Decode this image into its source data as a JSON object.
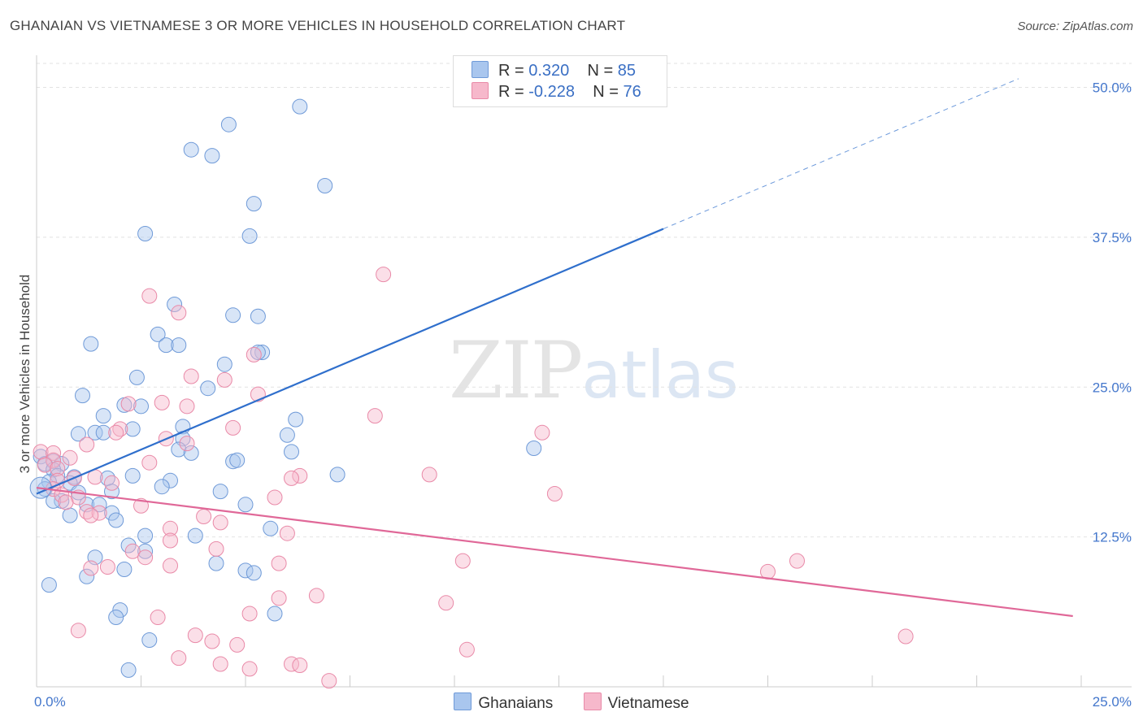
{
  "header": {
    "title": "GHANAIAN VS VIETNAMESE 3 OR MORE VEHICLES IN HOUSEHOLD CORRELATION CHART",
    "source": "Source: ZipAtlas.com"
  },
  "watermark": {
    "zip": "ZIP",
    "atlas": "atlas"
  },
  "legend": {
    "rows": [
      {
        "r_label": "R = ",
        "r_value": "0.320",
        "n_label": "N = ",
        "n_value": "85",
        "color": "#a9c6ee"
      },
      {
        "r_label": "R = ",
        "r_value": "-0.228",
        "n_label": "N = ",
        "n_value": "76",
        "color": "#f6b8cb"
      }
    ]
  },
  "bottom_legend": [
    {
      "name": "Ghanaians",
      "color": "#a9c6ee"
    },
    {
      "name": "Vietnamese",
      "color": "#f6b8cb"
    }
  ],
  "chart_data": {
    "type": "scatter",
    "title": "GHANAIAN VS VIETNAMESE 3 OR MORE VEHICLES IN HOUSEHOLD CORRELATION CHART",
    "xlabel": "",
    "ylabel": "3 or more Vehicles in Household",
    "xlim": [
      0,
      25
    ],
    "ylim": [
      0,
      50
    ],
    "x_tick_labels": [
      "0.0%",
      "25.0%"
    ],
    "y_ticks": [
      12.5,
      25,
      37.5,
      50
    ],
    "y_tick_labels": [
      "12.5%",
      "25.0%",
      "37.5%",
      "50.0%"
    ],
    "grid": true,
    "legend_position": "top-center",
    "series": [
      {
        "name": "Ghanaians",
        "color": "#a9c6ee",
        "stroke": "#6f9ad8",
        "trend": {
          "x0": 0,
          "y0": 16.1,
          "x1": 15,
          "y1": 38.2,
          "dash_to_x": 23.5,
          "color": "#2f6fcc"
        },
        "points": [
          [
            6.3,
            48.4
          ],
          [
            4.6,
            46.9
          ],
          [
            3.7,
            44.8
          ],
          [
            4.2,
            44.3
          ],
          [
            6.9,
            41.8
          ],
          [
            5.2,
            40.3
          ],
          [
            2.6,
            37.8
          ],
          [
            5.1,
            37.6
          ],
          [
            3.3,
            31.9
          ],
          [
            4.7,
            31.0
          ],
          [
            5.3,
            30.9
          ],
          [
            2.9,
            29.4
          ],
          [
            3.1,
            28.5
          ],
          [
            3.4,
            28.5
          ],
          [
            1.3,
            28.6
          ],
          [
            5.4,
            27.9
          ],
          [
            5.3,
            27.9
          ],
          [
            4.5,
            26.9
          ],
          [
            2.4,
            25.8
          ],
          [
            4.1,
            24.9
          ],
          [
            1.1,
            24.3
          ],
          [
            2.1,
            23.5
          ],
          [
            2.5,
            23.4
          ],
          [
            1.6,
            22.6
          ],
          [
            6.2,
            22.3
          ],
          [
            3.5,
            21.7
          ],
          [
            2.3,
            21.5
          ],
          [
            1.4,
            21.2
          ],
          [
            1.6,
            21.2
          ],
          [
            1.0,
            21.1
          ],
          [
            6.0,
            21.0
          ],
          [
            3.5,
            20.7
          ],
          [
            11.9,
            19.9
          ],
          [
            3.4,
            19.8
          ],
          [
            3.7,
            19.5
          ],
          [
            6.1,
            19.6
          ],
          [
            0.1,
            19.2
          ],
          [
            0.4,
            18.8
          ],
          [
            0.6,
            18.6
          ],
          [
            0.2,
            18.6
          ],
          [
            4.7,
            18.8
          ],
          [
            4.8,
            18.9
          ],
          [
            0.4,
            18.1
          ],
          [
            0.5,
            17.6
          ],
          [
            0.9,
            17.5
          ],
          [
            1.7,
            17.4
          ],
          [
            2.3,
            17.6
          ],
          [
            3.2,
            17.2
          ],
          [
            7.2,
            17.7
          ],
          [
            0.3,
            17.1
          ],
          [
            0.8,
            17.0
          ],
          [
            0.2,
            16.5
          ],
          [
            1.0,
            16.2
          ],
          [
            1.8,
            16.3
          ],
          [
            3.0,
            16.7
          ],
          [
            4.4,
            16.3
          ],
          [
            0.6,
            15.5
          ],
          [
            1.2,
            15.2
          ],
          [
            1.5,
            15.2
          ],
          [
            0.4,
            15.5
          ],
          [
            5.0,
            15.2
          ],
          [
            1.8,
            14.5
          ],
          [
            0.8,
            14.3
          ],
          [
            1.9,
            13.9
          ],
          [
            5.6,
            13.2
          ],
          [
            2.6,
            12.6
          ],
          [
            3.8,
            12.6
          ],
          [
            2.2,
            11.8
          ],
          [
            2.6,
            11.3
          ],
          [
            1.4,
            10.8
          ],
          [
            4.3,
            10.3
          ],
          [
            2.1,
            9.8
          ],
          [
            5.0,
            9.7
          ],
          [
            5.2,
            9.5
          ],
          [
            1.2,
            9.2
          ],
          [
            0.3,
            8.5
          ],
          [
            2.0,
            6.4
          ],
          [
            1.9,
            5.8
          ],
          [
            5.7,
            6.1
          ],
          [
            2.7,
            3.9
          ],
          [
            2.2,
            1.4
          ]
        ]
      },
      {
        "name": "Vietnamese",
        "color": "#f6b8cb",
        "stroke": "#e98aa8",
        "trend": {
          "x0": 0,
          "y0": 16.6,
          "x1": 24.8,
          "y1": 5.9,
          "color": "#e06898"
        },
        "points": [
          [
            8.3,
            34.4
          ],
          [
            2.7,
            32.6
          ],
          [
            3.4,
            31.2
          ],
          [
            5.2,
            27.7
          ],
          [
            3.7,
            25.9
          ],
          [
            4.5,
            25.6
          ],
          [
            5.3,
            24.4
          ],
          [
            3.0,
            23.7
          ],
          [
            2.2,
            23.6
          ],
          [
            3.6,
            23.4
          ],
          [
            8.1,
            22.6
          ],
          [
            4.7,
            21.6
          ],
          [
            2.0,
            21.5
          ],
          [
            1.9,
            21.2
          ],
          [
            12.1,
            21.2
          ],
          [
            3.1,
            20.7
          ],
          [
            3.6,
            20.3
          ],
          [
            1.2,
            20.2
          ],
          [
            0.1,
            19.6
          ],
          [
            0.4,
            19.5
          ],
          [
            0.8,
            19.1
          ],
          [
            0.4,
            18.9
          ],
          [
            2.7,
            18.7
          ],
          [
            0.2,
            18.5
          ],
          [
            0.5,
            18.2
          ],
          [
            9.4,
            17.7
          ],
          [
            6.3,
            17.6
          ],
          [
            1.4,
            17.5
          ],
          [
            0.9,
            17.4
          ],
          [
            6.1,
            17.4
          ],
          [
            0.5,
            17.2
          ],
          [
            1.8,
            17.0
          ],
          [
            0.4,
            16.5
          ],
          [
            0.6,
            16.0
          ],
          [
            12.4,
            16.1
          ],
          [
            5.7,
            15.8
          ],
          [
            1.0,
            15.8
          ],
          [
            0.7,
            15.4
          ],
          [
            2.5,
            15.1
          ],
          [
            1.2,
            14.6
          ],
          [
            1.5,
            14.5
          ],
          [
            1.3,
            14.3
          ],
          [
            4.0,
            14.2
          ],
          [
            4.4,
            13.7
          ],
          [
            3.2,
            13.2
          ],
          [
            6.0,
            12.8
          ],
          [
            3.2,
            12.2
          ],
          [
            4.3,
            11.5
          ],
          [
            2.3,
            11.3
          ],
          [
            2.6,
            10.8
          ],
          [
            10.2,
            10.5
          ],
          [
            18.2,
            10.5
          ],
          [
            5.8,
            10.3
          ],
          [
            3.2,
            10.1
          ],
          [
            1.7,
            10.0
          ],
          [
            1.3,
            9.9
          ],
          [
            17.5,
            9.6
          ],
          [
            6.7,
            7.6
          ],
          [
            5.8,
            7.4
          ],
          [
            9.8,
            7.0
          ],
          [
            5.1,
            6.1
          ],
          [
            2.9,
            5.8
          ],
          [
            1.0,
            4.7
          ],
          [
            3.8,
            4.3
          ],
          [
            4.2,
            3.8
          ],
          [
            4.8,
            3.5
          ],
          [
            20.8,
            4.2
          ],
          [
            10.3,
            3.1
          ],
          [
            3.4,
            2.4
          ],
          [
            4.4,
            1.9
          ],
          [
            6.1,
            1.9
          ],
          [
            6.3,
            1.8
          ],
          [
            5.1,
            1.5
          ],
          [
            7.0,
            0.5
          ]
        ]
      }
    ]
  }
}
